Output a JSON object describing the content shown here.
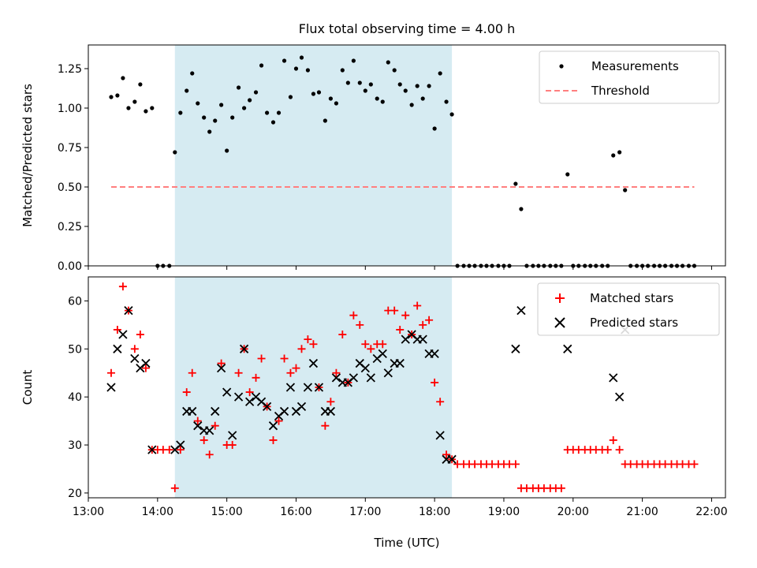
{
  "chart_data": [
    {
      "type": "scatter",
      "title": "Flux total observing time = 4.00 h",
      "ylabel": "Matched/Predicted stars",
      "xlabel": "",
      "xlim": [
        13.0,
        22.2
      ],
      "ylim": [
        0.0,
        1.4
      ],
      "yticks": [
        0.0,
        0.25,
        0.5,
        0.75,
        1.0,
        1.25
      ],
      "ytick_labels": [
        "0.00",
        "0.25",
        "0.50",
        "0.75",
        "1.00",
        "1.25"
      ],
      "shaded_interval": {
        "start": 14.25,
        "end": 18.25,
        "color": "#add8e6"
      },
      "legend_position": "upper right",
      "legend": [
        {
          "label": "Measurements",
          "marker": "dot",
          "color": "#000000"
        },
        {
          "label": "Threshold",
          "marker": "dashed-line",
          "color": "#ff7f7f"
        }
      ],
      "threshold": {
        "x": [
          13.33,
          21.75
        ],
        "y": 0.5
      },
      "measurements": [
        [
          13.33,
          1.07
        ],
        [
          13.42,
          1.08
        ],
        [
          13.5,
          1.19
        ],
        [
          13.58,
          1.0
        ],
        [
          13.67,
          1.04
        ],
        [
          13.75,
          1.15
        ],
        [
          13.83,
          0.98
        ],
        [
          13.92,
          1.0
        ],
        [
          14.0,
          0.0
        ],
        [
          14.08,
          0.0
        ],
        [
          14.17,
          0.0
        ],
        [
          14.25,
          0.72
        ],
        [
          14.33,
          0.97
        ],
        [
          14.42,
          1.11
        ],
        [
          14.5,
          1.22
        ],
        [
          14.58,
          1.03
        ],
        [
          14.67,
          0.94
        ],
        [
          14.75,
          0.85
        ],
        [
          14.83,
          0.92
        ],
        [
          14.92,
          1.02
        ],
        [
          15.0,
          0.73
        ],
        [
          15.08,
          0.94
        ],
        [
          15.17,
          1.13
        ],
        [
          15.25,
          1.0
        ],
        [
          15.33,
          1.05
        ],
        [
          15.42,
          1.1
        ],
        [
          15.5,
          1.27
        ],
        [
          15.58,
          0.97
        ],
        [
          15.67,
          0.91
        ],
        [
          15.75,
          0.97
        ],
        [
          15.83,
          1.3
        ],
        [
          15.92,
          1.07
        ],
        [
          16.0,
          1.25
        ],
        [
          16.08,
          1.32
        ],
        [
          16.17,
          1.24
        ],
        [
          16.25,
          1.09
        ],
        [
          16.33,
          1.1
        ],
        [
          16.42,
          0.92
        ],
        [
          16.5,
          1.06
        ],
        [
          16.58,
          1.03
        ],
        [
          16.67,
          1.24
        ],
        [
          16.75,
          1.16
        ],
        [
          16.83,
          1.3
        ],
        [
          16.92,
          1.16
        ],
        [
          17.0,
          1.11
        ],
        [
          17.08,
          1.15
        ],
        [
          17.17,
          1.06
        ],
        [
          17.25,
          1.04
        ],
        [
          17.33,
          1.29
        ],
        [
          17.42,
          1.24
        ],
        [
          17.5,
          1.15
        ],
        [
          17.58,
          1.11
        ],
        [
          17.67,
          1.02
        ],
        [
          17.75,
          1.14
        ],
        [
          17.83,
          1.06
        ],
        [
          17.92,
          1.14
        ],
        [
          18.0,
          0.87
        ],
        [
          18.08,
          1.22
        ],
        [
          18.17,
          1.04
        ],
        [
          18.25,
          0.96
        ],
        [
          18.33,
          0.0
        ],
        [
          18.42,
          0.0
        ],
        [
          18.5,
          0.0
        ],
        [
          18.58,
          0.0
        ],
        [
          18.67,
          0.0
        ],
        [
          18.75,
          0.0
        ],
        [
          18.83,
          0.0
        ],
        [
          18.92,
          0.0
        ],
        [
          19.0,
          0.0
        ],
        [
          19.08,
          0.0
        ],
        [
          19.17,
          0.52
        ],
        [
          19.25,
          0.36
        ],
        [
          19.33,
          0.0
        ],
        [
          19.42,
          0.0
        ],
        [
          19.5,
          0.0
        ],
        [
          19.58,
          0.0
        ],
        [
          19.67,
          0.0
        ],
        [
          19.75,
          0.0
        ],
        [
          19.83,
          0.0
        ],
        [
          19.92,
          0.58
        ],
        [
          20.0,
          0.0
        ],
        [
          20.08,
          0.0
        ],
        [
          20.17,
          0.0
        ],
        [
          20.25,
          0.0
        ],
        [
          20.33,
          0.0
        ],
        [
          20.42,
          0.0
        ],
        [
          20.5,
          0.0
        ],
        [
          20.58,
          0.7
        ],
        [
          20.67,
          0.72
        ],
        [
          20.75,
          0.48
        ],
        [
          20.83,
          0.0
        ],
        [
          20.92,
          0.0
        ],
        [
          21.0,
          0.0
        ],
        [
          21.08,
          0.0
        ],
        [
          21.17,
          0.0
        ],
        [
          21.25,
          0.0
        ],
        [
          21.33,
          0.0
        ],
        [
          21.42,
          0.0
        ],
        [
          21.5,
          0.0
        ],
        [
          21.58,
          0.0
        ],
        [
          21.67,
          0.0
        ],
        [
          21.75,
          0.0
        ]
      ]
    },
    {
      "type": "scatter",
      "title": "",
      "ylabel": "Count",
      "xlabel": "Time (UTC)",
      "xlim": [
        13.0,
        22.2
      ],
      "ylim": [
        19,
        65
      ],
      "yticks": [
        20,
        30,
        40,
        50,
        60
      ],
      "ytick_labels": [
        "20",
        "30",
        "40",
        "50",
        "60"
      ],
      "xticks": [
        13,
        14,
        15,
        16,
        17,
        18,
        19,
        20,
        21,
        22
      ],
      "xtick_labels": [
        "13:00",
        "14:00",
        "15:00",
        "16:00",
        "17:00",
        "18:00",
        "19:00",
        "20:00",
        "21:00",
        "22:00"
      ],
      "shaded_interval": {
        "start": 14.25,
        "end": 18.25,
        "color": "#add8e6"
      },
      "legend_position": "upper right",
      "legend": [
        {
          "label": "Matched stars",
          "marker": "plus",
          "color": "#ff0000"
        },
        {
          "label": "Predicted stars",
          "marker": "x",
          "color": "#000000"
        }
      ],
      "matched": [
        [
          13.33,
          45
        ],
        [
          13.42,
          54
        ],
        [
          13.5,
          63
        ],
        [
          13.58,
          58
        ],
        [
          13.67,
          50
        ],
        [
          13.75,
          53
        ],
        [
          13.83,
          46
        ],
        [
          13.92,
          29
        ],
        [
          14.0,
          29
        ],
        [
          14.08,
          29
        ],
        [
          14.17,
          29
        ],
        [
          14.25,
          21
        ],
        [
          14.33,
          29
        ],
        [
          14.42,
          41
        ],
        [
          14.5,
          45
        ],
        [
          14.58,
          35
        ],
        [
          14.67,
          31
        ],
        [
          14.75,
          28
        ],
        [
          14.83,
          34
        ],
        [
          14.92,
          47
        ],
        [
          15.0,
          30
        ],
        [
          15.08,
          30
        ],
        [
          15.17,
          45
        ],
        [
          15.25,
          50
        ],
        [
          15.33,
          41
        ],
        [
          15.42,
          44
        ],
        [
          15.5,
          48
        ],
        [
          15.58,
          38
        ],
        [
          15.67,
          31
        ],
        [
          15.75,
          35
        ],
        [
          15.83,
          48
        ],
        [
          15.92,
          45
        ],
        [
          16.0,
          46
        ],
        [
          16.08,
          50
        ],
        [
          16.17,
          52
        ],
        [
          16.25,
          51
        ],
        [
          16.33,
          42
        ],
        [
          16.42,
          34
        ],
        [
          16.5,
          39
        ],
        [
          16.58,
          45
        ],
        [
          16.67,
          53
        ],
        [
          16.75,
          43
        ],
        [
          16.83,
          57
        ],
        [
          16.92,
          55
        ],
        [
          17.0,
          51
        ],
        [
          17.08,
          50
        ],
        [
          17.17,
          51
        ],
        [
          17.25,
          51
        ],
        [
          17.33,
          58
        ],
        [
          17.42,
          58
        ],
        [
          17.5,
          54
        ],
        [
          17.58,
          57
        ],
        [
          17.67,
          53
        ],
        [
          17.75,
          59
        ],
        [
          17.83,
          55
        ],
        [
          17.92,
          56
        ],
        [
          18.0,
          43
        ],
        [
          18.08,
          39
        ],
        [
          18.17,
          28
        ],
        [
          18.25,
          27
        ],
        [
          18.33,
          26
        ],
        [
          18.42,
          26
        ],
        [
          18.5,
          26
        ],
        [
          18.58,
          26
        ],
        [
          18.67,
          26
        ],
        [
          18.75,
          26
        ],
        [
          18.83,
          26
        ],
        [
          18.92,
          26
        ],
        [
          19.0,
          26
        ],
        [
          19.08,
          26
        ],
        [
          19.17,
          26
        ],
        [
          19.25,
          21
        ],
        [
          19.33,
          21
        ],
        [
          19.42,
          21
        ],
        [
          19.5,
          21
        ],
        [
          19.58,
          21
        ],
        [
          19.67,
          21
        ],
        [
          19.75,
          21
        ],
        [
          19.83,
          21
        ],
        [
          19.92,
          29
        ],
        [
          20.0,
          29
        ],
        [
          20.08,
          29
        ],
        [
          20.17,
          29
        ],
        [
          20.25,
          29
        ],
        [
          20.33,
          29
        ],
        [
          20.42,
          29
        ],
        [
          20.5,
          29
        ],
        [
          20.58,
          31
        ],
        [
          20.67,
          29
        ],
        [
          20.75,
          26
        ],
        [
          20.83,
          26
        ],
        [
          20.92,
          26
        ],
        [
          21.0,
          26
        ],
        [
          21.08,
          26
        ],
        [
          21.17,
          26
        ],
        [
          21.25,
          26
        ],
        [
          21.33,
          26
        ],
        [
          21.42,
          26
        ],
        [
          21.5,
          26
        ],
        [
          21.58,
          26
        ],
        [
          21.67,
          26
        ],
        [
          21.75,
          26
        ]
      ],
      "predicted": [
        [
          13.33,
          42
        ],
        [
          13.42,
          50
        ],
        [
          13.5,
          53
        ],
        [
          13.58,
          58
        ],
        [
          13.67,
          48
        ],
        [
          13.75,
          46
        ],
        [
          13.83,
          47
        ],
        [
          13.92,
          29
        ],
        [
          14.25,
          29
        ],
        [
          14.33,
          30
        ],
        [
          14.42,
          37
        ],
        [
          14.5,
          37
        ],
        [
          14.58,
          34
        ],
        [
          14.67,
          33
        ],
        [
          14.75,
          33
        ],
        [
          14.83,
          37
        ],
        [
          14.92,
          46
        ],
        [
          15.0,
          41
        ],
        [
          15.08,
          32
        ],
        [
          15.17,
          40
        ],
        [
          15.25,
          50
        ],
        [
          15.33,
          39
        ],
        [
          15.42,
          40
        ],
        [
          15.5,
          39
        ],
        [
          15.58,
          38
        ],
        [
          15.67,
          34
        ],
        [
          15.75,
          36
        ],
        [
          15.83,
          37
        ],
        [
          15.92,
          42
        ],
        [
          16.0,
          37
        ],
        [
          16.08,
          38
        ],
        [
          16.17,
          42
        ],
        [
          16.25,
          47
        ],
        [
          16.33,
          42
        ],
        [
          16.42,
          37
        ],
        [
          16.5,
          37
        ],
        [
          16.58,
          44
        ],
        [
          16.67,
          43
        ],
        [
          16.75,
          43
        ],
        [
          16.83,
          44
        ],
        [
          16.92,
          47
        ],
        [
          17.0,
          46
        ],
        [
          17.08,
          44
        ],
        [
          17.17,
          48
        ],
        [
          17.25,
          49
        ],
        [
          17.33,
          45
        ],
        [
          17.42,
          47
        ],
        [
          17.5,
          47
        ],
        [
          17.58,
          52
        ],
        [
          17.67,
          53
        ],
        [
          17.75,
          52
        ],
        [
          17.83,
          52
        ],
        [
          17.92,
          49
        ],
        [
          18.0,
          49
        ],
        [
          18.08,
          32
        ],
        [
          18.17,
          27
        ],
        [
          18.25,
          27
        ],
        [
          19.17,
          50
        ],
        [
          19.25,
          58
        ],
        [
          19.92,
          50
        ],
        [
          20.58,
          44
        ],
        [
          20.67,
          40
        ],
        [
          20.75,
          54
        ]
      ]
    }
  ]
}
